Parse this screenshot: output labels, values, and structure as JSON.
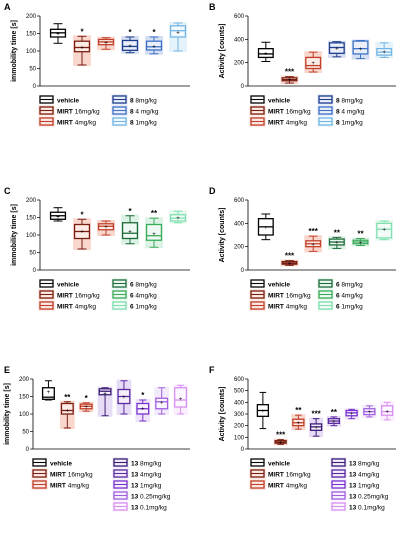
{
  "chart_data": [
    {
      "panel": "A",
      "type": "box",
      "ylabel": "immobility time [s]",
      "ylim": [
        0,
        200
      ],
      "yticks": [
        0,
        50,
        100,
        150,
        200
      ],
      "series": [
        {
          "name": "vehicle",
          "color": "#000000",
          "fill": "none",
          "whisker_low": 122,
          "q1": 140,
          "median": 152,
          "q3": 162,
          "whisker_high": 178,
          "mean": 150,
          "sig": ""
        },
        {
          "name": "MIRT 16mg/kg",
          "color": "#7a1e12",
          "fill": "#f8c9bc",
          "whisker_low": 60,
          "q1": 98,
          "median": 110,
          "q3": 128,
          "whisker_high": 142,
          "mean": 112,
          "sig": "*"
        },
        {
          "name": "MIRT 4mg/kg",
          "color": "#c0402a",
          "fill": "#f8c9bc",
          "whisker_low": 105,
          "q1": 118,
          "median": 126,
          "q3": 133,
          "whisker_high": 138,
          "mean": 125,
          "sig": ""
        },
        {
          "name": "8 8mg/kg",
          "color": "#1f3f8c",
          "fill": "#c8d3ee",
          "whisker_low": 95,
          "q1": 102,
          "median": 113,
          "q3": 130,
          "whisker_high": 140,
          "mean": 116,
          "sig": "*"
        },
        {
          "name": "8 4 mg/kg",
          "color": "#3f73c8",
          "fill": "#c8d3ee",
          "whisker_low": 92,
          "q1": 103,
          "median": 112,
          "q3": 128,
          "whisker_high": 140,
          "mean": 115,
          "sig": "*"
        },
        {
          "name": "8 1mg/kg",
          "color": "#73b6e6",
          "fill": "#dbeef8",
          "whisker_low": 100,
          "q1": 140,
          "median": 158,
          "q3": 172,
          "whisker_high": 180,
          "mean": 155,
          "sig": ""
        }
      ]
    },
    {
      "panel": "B",
      "type": "box",
      "ylabel": "Activity [counts]",
      "ylim": [
        0,
        600
      ],
      "yticks": [
        0,
        200,
        400,
        600
      ],
      "series": [
        {
          "name": "vehicle",
          "color": "#000000",
          "fill": "none",
          "whisker_low": 210,
          "q1": 245,
          "median": 275,
          "q3": 320,
          "whisker_high": 375,
          "mean": 285,
          "sig": ""
        },
        {
          "name": "MIRT 16mg/kg",
          "color": "#7a1e12",
          "fill": "#f8c9bc",
          "whisker_low": 25,
          "q1": 45,
          "median": 55,
          "q3": 70,
          "whisker_high": 80,
          "mean": 58,
          "sig": "***"
        },
        {
          "name": "MIRT 4mg/kg",
          "color": "#c0402a",
          "fill": "#f8c9bc",
          "whisker_low": 120,
          "q1": 150,
          "median": 175,
          "q3": 245,
          "whisker_high": 290,
          "mean": 200,
          "sig": ""
        },
        {
          "name": "8 8mg/kg",
          "color": "#1f3f8c",
          "fill": "#c8d3ee",
          "whisker_low": 250,
          "q1": 280,
          "median": 330,
          "q3": 370,
          "whisker_high": 380,
          "mean": 325,
          "sig": ""
        },
        {
          "name": "8 4 mg/kg",
          "color": "#3f73c8",
          "fill": "#c8d3ee",
          "whisker_low": 235,
          "q1": 275,
          "median": 320,
          "q3": 385,
          "whisker_high": 390,
          "mean": 320,
          "sig": ""
        },
        {
          "name": "8 1mg/kg",
          "color": "#73b6e6",
          "fill": "#dbeef8",
          "whisker_low": 245,
          "q1": 265,
          "median": 290,
          "q3": 320,
          "whisker_high": 370,
          "mean": 295,
          "sig": ""
        }
      ]
    },
    {
      "panel": "C",
      "type": "box",
      "ylabel": "immobility time [s]",
      "ylim": [
        0,
        200
      ],
      "yticks": [
        0,
        50,
        100,
        150,
        200
      ],
      "series": [
        {
          "name": "vehicle",
          "color": "#000000",
          "fill": "none",
          "whisker_low": 140,
          "q1": 145,
          "median": 155,
          "q3": 165,
          "whisker_high": 178,
          "mean": 153,
          "sig": ""
        },
        {
          "name": "MIRT 16mg/kg",
          "color": "#7a1e12",
          "fill": "#f8c9bc",
          "whisker_low": 60,
          "q1": 90,
          "median": 110,
          "q3": 130,
          "whisker_high": 145,
          "mean": 112,
          "sig": "*"
        },
        {
          "name": "MIRT 4mg/kg",
          "color": "#c0402a",
          "fill": "#f8c9bc",
          "whisker_low": 100,
          "q1": 115,
          "median": 125,
          "q3": 132,
          "whisker_high": 140,
          "mean": 124,
          "sig": ""
        },
        {
          "name": "6 8mg/kg",
          "color": "#1e6b3a",
          "fill": "#cfeedb",
          "whisker_low": 75,
          "q1": 90,
          "median": 105,
          "q3": 135,
          "whisker_high": 155,
          "mean": 112,
          "sig": "*"
        },
        {
          "name": "6 4mg/kg",
          "color": "#3cab5a",
          "fill": "#cfeedb",
          "whisker_low": 65,
          "q1": 85,
          "median": 98,
          "q3": 130,
          "whisker_high": 148,
          "mean": 105,
          "sig": "**"
        },
        {
          "name": "6 1mg/kg",
          "color": "#7fe0b0",
          "fill": "#dff6ea",
          "whisker_low": 135,
          "q1": 140,
          "median": 148,
          "q3": 158,
          "whisker_high": 168,
          "mean": 150,
          "sig": ""
        }
      ]
    },
    {
      "panel": "D",
      "type": "box",
      "ylabel": "Activity [counts]",
      "ylim": [
        0,
        600
      ],
      "yticks": [
        0,
        200,
        400,
        600
      ],
      "series": [
        {
          "name": "vehicle",
          "color": "#000000",
          "fill": "none",
          "whisker_low": 260,
          "q1": 300,
          "median": 370,
          "q3": 440,
          "whisker_high": 480,
          "mean": 370,
          "sig": ""
        },
        {
          "name": "MIRT 16mg/kg",
          "color": "#7a1e12",
          "fill": "#f8c9bc",
          "whisker_low": 40,
          "q1": 50,
          "median": 60,
          "q3": 72,
          "whisker_high": 80,
          "mean": 60,
          "sig": "***"
        },
        {
          "name": "MIRT 4mg/kg",
          "color": "#c0402a",
          "fill": "#f8c9bc",
          "whisker_low": 160,
          "q1": 200,
          "median": 225,
          "q3": 250,
          "whisker_high": 290,
          "mean": 225,
          "sig": "***"
        },
        {
          "name": "6 8mg/kg",
          "color": "#1e6b3a",
          "fill": "#cfeedb",
          "whisker_low": 185,
          "q1": 215,
          "median": 240,
          "q3": 265,
          "whisker_high": 280,
          "mean": 240,
          "sig": "**"
        },
        {
          "name": "6 4mg/kg",
          "color": "#3cab5a",
          "fill": "#cfeedb",
          "whisker_low": 210,
          "q1": 225,
          "median": 240,
          "q3": 255,
          "whisker_high": 270,
          "mean": 240,
          "sig": "**"
        },
        {
          "name": "6 1mg/kg",
          "color": "#7fe0b0",
          "fill": "#dff6ea",
          "whisker_low": 260,
          "q1": 275,
          "median": 350,
          "q3": 400,
          "whisker_high": 420,
          "mean": 350,
          "sig": ""
        }
      ]
    },
    {
      "panel": "E",
      "type": "box",
      "ylabel": "immobility time [s]",
      "ylim": [
        0,
        200
      ],
      "yticks": [
        0,
        50,
        100,
        150,
        200
      ],
      "series": [
        {
          "name": "vehicle",
          "color": "#000000",
          "fill": "none",
          "whisker_low": 140,
          "q1": 142,
          "median": 148,
          "q3": 175,
          "whisker_high": 195,
          "mean": 165,
          "sig": ""
        },
        {
          "name": "MIRT 16mg/kg",
          "color": "#7a1e12",
          "fill": "#f8c9bc",
          "whisker_low": 60,
          "q1": 100,
          "median": 110,
          "q3": 130,
          "whisker_high": 135,
          "mean": 112,
          "sig": "**"
        },
        {
          "name": "MIRT 4mg/kg",
          "color": "#c0402a",
          "fill": "#f8c9bc",
          "whisker_low": 108,
          "q1": 115,
          "median": 122,
          "q3": 128,
          "whisker_high": 132,
          "mean": 121,
          "sig": "*"
        },
        {
          "name": "13 8mg/kg",
          "color": "#3b1c75",
          "fill": "#ddd0f2",
          "whisker_low": 95,
          "q1": 155,
          "median": 165,
          "q3": 172,
          "whisker_high": 175,
          "mean": 160,
          "sig": ""
        },
        {
          "name": "13 4mg/kg",
          "color": "#5a2aa0",
          "fill": "#ddd0f2",
          "whisker_low": 100,
          "q1": 130,
          "median": 150,
          "q3": 170,
          "whisker_high": 195,
          "mean": 150,
          "sig": ""
        },
        {
          "name": "13 1mg/kg",
          "color": "#7a32d0",
          "fill": "#e8dcf8",
          "whisker_low": 80,
          "q1": 100,
          "median": 115,
          "q3": 130,
          "whisker_high": 140,
          "mean": 117,
          "sig": "*"
        },
        {
          "name": "13 0.25mg/kg",
          "color": "#a060e0",
          "fill": "#efe3fb",
          "whisker_low": 100,
          "q1": 115,
          "median": 135,
          "q3": 145,
          "whisker_high": 175,
          "mean": 135,
          "sig": ""
        },
        {
          "name": "13 0.1mg/kg",
          "color": "#d890f0",
          "fill": "#f8e8fd",
          "whisker_low": 100,
          "q1": 120,
          "median": 140,
          "q3": 175,
          "whisker_high": 182,
          "mean": 145,
          "sig": ""
        }
      ]
    },
    {
      "panel": "F",
      "type": "box",
      "ylabel": "Activity [counts]",
      "ylim": [
        0,
        600
      ],
      "yticks": [
        0,
        100,
        200,
        300,
        400,
        500,
        600
      ],
      "series": [
        {
          "name": "vehicle",
          "color": "#000000",
          "fill": "none",
          "whisker_low": 175,
          "q1": 280,
          "median": 330,
          "q3": 380,
          "whisker_high": 485,
          "mean": 330,
          "sig": ""
        },
        {
          "name": "MIRT 16mg/kg",
          "color": "#7a1e12",
          "fill": "#f8c9bc",
          "whisker_low": 40,
          "q1": 50,
          "median": 60,
          "q3": 72,
          "whisker_high": 80,
          "mean": 62,
          "sig": "***"
        },
        {
          "name": "MIRT 4mg/kg",
          "color": "#c0402a",
          "fill": "#f8c9bc",
          "whisker_low": 170,
          "q1": 200,
          "median": 225,
          "q3": 255,
          "whisker_high": 290,
          "mean": 228,
          "sig": "**"
        },
        {
          "name": "13 8mg/kg",
          "color": "#3b1c75",
          "fill": "#ddd0f2",
          "whisker_low": 110,
          "q1": 160,
          "median": 190,
          "q3": 215,
          "whisker_high": 260,
          "mean": 190,
          "sig": "***"
        },
        {
          "name": "13 4mg/kg",
          "color": "#5a2aa0",
          "fill": "#ddd0f2",
          "whisker_low": 200,
          "q1": 220,
          "median": 240,
          "q3": 260,
          "whisker_high": 275,
          "mean": 240,
          "sig": "**"
        },
        {
          "name": "13 1mg/kg",
          "color": "#7a32d0",
          "fill": "#e8dcf8",
          "whisker_low": 260,
          "q1": 285,
          "median": 310,
          "q3": 330,
          "whisker_high": 340,
          "mean": 310,
          "sig": ""
        },
        {
          "name": "13 0.25mg/kg",
          "color": "#a060e0",
          "fill": "#efe3fb",
          "whisker_low": 275,
          "q1": 295,
          "median": 320,
          "q3": 345,
          "whisker_high": 370,
          "mean": 320,
          "sig": ""
        },
        {
          "name": "13 0.1mg/kg",
          "color": "#d890f0",
          "fill": "#f8e8fd",
          "whisker_low": 250,
          "q1": 290,
          "median": 320,
          "q3": 370,
          "whisker_high": 400,
          "mean": 325,
          "sig": ""
        }
      ]
    }
  ]
}
